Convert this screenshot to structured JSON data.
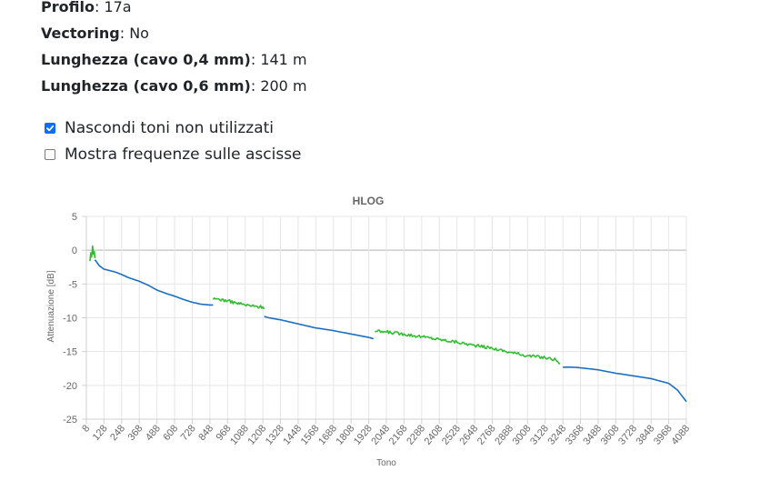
{
  "info": {
    "profile_label": "Profilo",
    "profile_value": "17a",
    "vectoring_label": "Vectoring",
    "vectoring_value": "No",
    "len04_label": "Lunghezza (cavo 0,4 mm)",
    "len04_value": "141 m",
    "len06_label": "Lunghezza (cavo 0,6 mm)",
    "len06_value": "200 m"
  },
  "options": {
    "hide_unused": {
      "label": "Nascondi toni non utilizzati",
      "checked": true
    },
    "show_freq": {
      "label": "Mostra frequenze sulle ascisse",
      "checked": false
    }
  },
  "chart_data": {
    "type": "line",
    "title": "HLOG",
    "xlabel": "Tono",
    "ylabel": "Attenuazione [dB]",
    "ylim": [
      -25,
      5
    ],
    "yticks": [
      5,
      0,
      -5,
      -10,
      -15,
      -20,
      -25
    ],
    "xlim": [
      8,
      4088
    ],
    "xticks": [
      8,
      128,
      248,
      368,
      488,
      608,
      728,
      848,
      968,
      1088,
      1208,
      1328,
      1448,
      1568,
      1688,
      1808,
      1928,
      2048,
      2168,
      2288,
      2408,
      2528,
      2648,
      2768,
      2888,
      3008,
      3128,
      3248,
      3368,
      3488,
      3608,
      3728,
      3848,
      3968,
      4088
    ],
    "grid": true,
    "colors": {
      "downstream": "#1a6fc4",
      "upstream": "#2ebf2e"
    },
    "series": [
      {
        "band": "upstream",
        "x": [
          32,
          38,
          44,
          50,
          56,
          62,
          66
        ],
        "y": [
          -1.6,
          -0.4,
          -1.0,
          0.6,
          -0.6,
          -0.2,
          -1.2
        ]
      },
      {
        "band": "downstream",
        "x": [
          66,
          96,
          128,
          200,
          248,
          300,
          368,
          430,
          488,
          550,
          608,
          670,
          728,
          790,
          848,
          870
        ],
        "y": [
          -1.4,
          -2.3,
          -2.8,
          -3.2,
          -3.6,
          -4.1,
          -4.6,
          -5.2,
          -5.9,
          -6.4,
          -6.8,
          -7.3,
          -7.7,
          -8.0,
          -8.1,
          -8.1
        ]
      },
      {
        "band": "upstream",
        "x": [
          870,
          900,
          968,
          1028,
          1088,
          1148,
          1208,
          1218
        ],
        "y": [
          -7.3,
          -7.2,
          -7.5,
          -7.8,
          -8.1,
          -8.3,
          -8.4,
          -8.5
        ]
      },
      {
        "band": "downstream",
        "x": [
          1218,
          1248,
          1328,
          1448,
          1568,
          1688,
          1808,
          1928,
          1960
        ],
        "y": [
          -9.8,
          -10.0,
          -10.3,
          -10.9,
          -11.5,
          -11.9,
          -12.4,
          -12.9,
          -13.1
        ]
      },
      {
        "band": "upstream",
        "x": [
          1970,
          2048,
          2168,
          2288,
          2408,
          2528,
          2648,
          2768,
          2888,
          3008,
          3128,
          3200,
          3230
        ],
        "y": [
          -12.0,
          -12.1,
          -12.4,
          -12.8,
          -13.2,
          -13.6,
          -14.1,
          -14.5,
          -15.1,
          -15.6,
          -15.9,
          -16.2,
          -16.8
        ]
      },
      {
        "band": "downstream",
        "x": [
          3248,
          3308,
          3368,
          3488,
          3608,
          3728,
          3848,
          3968,
          4028,
          4088
        ],
        "y": [
          -17.3,
          -17.3,
          -17.4,
          -17.7,
          -18.2,
          -18.6,
          -19.0,
          -19.7,
          -20.7,
          -22.4
        ]
      }
    ]
  }
}
